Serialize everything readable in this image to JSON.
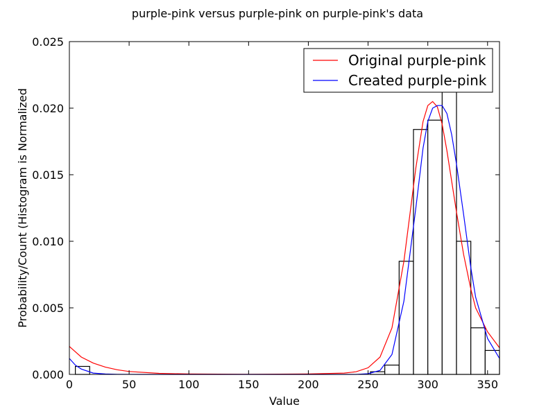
{
  "chart_data": {
    "type": "bar",
    "title": "purple-pink versus purple-pink on purple-pink's data",
    "xlabel": "Value",
    "ylabel": "Probability/Count (Histogram is Normalized",
    "xlim": [
      0,
      360
    ],
    "ylim": [
      0,
      0.025
    ],
    "xticks": [
      0,
      50,
      100,
      150,
      200,
      250,
      300,
      350
    ],
    "yticks": [
      0.0,
      0.005,
      0.01,
      0.015,
      0.02,
      0.025
    ],
    "xtick_labels": [
      "0",
      "50",
      "100",
      "150",
      "200",
      "250",
      "300",
      "350"
    ],
    "ytick_labels": [
      "0.000",
      "0.005",
      "0.010",
      "0.015",
      "0.020",
      "0.025"
    ],
    "grid": false,
    "legend_position": "top-right",
    "histogram": {
      "bins": [
        {
          "x0": 5,
          "x1": 17,
          "value": 0.0006
        },
        {
          "x0": 252,
          "x1": 264,
          "value": 0.0002
        },
        {
          "x0": 264,
          "x1": 276,
          "value": 0.0007
        },
        {
          "x0": 276,
          "x1": 288,
          "value": 0.0085
        },
        {
          "x0": 288,
          "x1": 300,
          "value": 0.0184
        },
        {
          "x0": 300,
          "x1": 312,
          "value": 0.0191
        },
        {
          "x0": 312,
          "x1": 324,
          "value": 0.0215
        },
        {
          "x0": 324,
          "x1": 336,
          "value": 0.01
        },
        {
          "x0": 336,
          "x1": 348,
          "value": 0.0035
        },
        {
          "x0": 348,
          "x1": 360,
          "value": 0.0018
        }
      ]
    },
    "series": [
      {
        "name": "Original purple-pink",
        "color": "#ff0000",
        "x": [
          0,
          10,
          20,
          30,
          40,
          50,
          75,
          100,
          150,
          200,
          230,
          240,
          250,
          260,
          270,
          280,
          290,
          296,
          300,
          304,
          308,
          312,
          316,
          320,
          324,
          330,
          336,
          340,
          350,
          360
        ],
        "y": [
          0.0021,
          0.0013,
          0.00085,
          0.00055,
          0.00035,
          0.00022,
          8e-05,
          3e-05,
          1e-05,
          3e-05,
          0.0001,
          0.0002,
          0.0005,
          0.0013,
          0.0035,
          0.0085,
          0.0155,
          0.019,
          0.0202,
          0.0205,
          0.0201,
          0.0188,
          0.0168,
          0.0145,
          0.0122,
          0.009,
          0.0064,
          0.005,
          0.0032,
          0.002
        ]
      },
      {
        "name": "Created purple-pink",
        "color": "#0000ff",
        "x": [
          0,
          5,
          10,
          20,
          30,
          40,
          60,
          100,
          200,
          240,
          250,
          260,
          270,
          280,
          290,
          296,
          300,
          304,
          308,
          312,
          316,
          320,
          324,
          330,
          336,
          340,
          350,
          360
        ],
        "y": [
          0.0012,
          0.0007,
          0.0004,
          0.0001,
          3e-05,
          1e-05,
          0.0,
          0.0,
          0.0,
          0.0,
          5e-05,
          0.0003,
          0.0015,
          0.0055,
          0.0125,
          0.017,
          0.019,
          0.02,
          0.0202,
          0.0202,
          0.0196,
          0.018,
          0.0158,
          0.012,
          0.008,
          0.0058,
          0.0027,
          0.0012
        ]
      }
    ]
  }
}
